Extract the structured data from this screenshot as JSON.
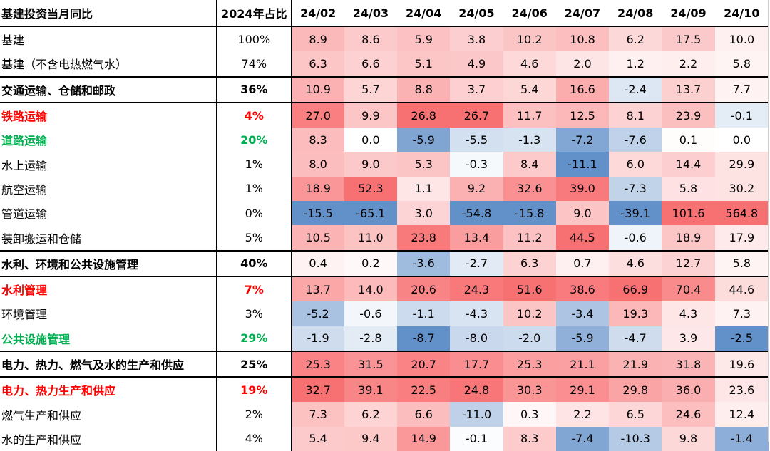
{
  "header": {
    "title": "基建投资当月同比",
    "share_label": "2024年占比",
    "months": [
      "24/02",
      "24/03",
      "24/04",
      "24/05",
      "24/06",
      "24/07",
      "24/08",
      "24/09",
      "24/10"
    ]
  },
  "rows": [
    {
      "name": "基建",
      "share": "100%",
      "style": "normal",
      "sep": false,
      "values": [
        8.9,
        8.6,
        5.9,
        3.8,
        10.2,
        10.8,
        6.2,
        17.5,
        10.0
      ]
    },
    {
      "name": "基建（不含电热燃气水）",
      "share": "74%",
      "style": "normal",
      "sep": true,
      "values": [
        6.3,
        6.6,
        5.1,
        4.9,
        4.6,
        2.0,
        1.2,
        2.2,
        5.8
      ]
    },
    {
      "name": "交通运输、仓储和邮政",
      "share": "36%",
      "style": "bold",
      "sep": true,
      "values": [
        10.9,
        5.7,
        8.8,
        3.7,
        5.4,
        16.6,
        -2.4,
        13.7,
        7.7
      ]
    },
    {
      "name": "铁路运输",
      "share": "4%",
      "style": "red",
      "sep": false,
      "values": [
        27.0,
        9.9,
        26.8,
        26.7,
        11.7,
        12.5,
        8.1,
        23.9,
        -0.1
      ]
    },
    {
      "name": "道路运输",
      "share": "20%",
      "style": "green",
      "sep": false,
      "values": [
        8.3,
        0.0,
        -5.9,
        -5.5,
        -1.3,
        -7.2,
        -7.6,
        0.1,
        0.0
      ]
    },
    {
      "name": "水上运输",
      "share": "1%",
      "style": "normal",
      "sep": false,
      "values": [
        8.0,
        9.0,
        5.3,
        -0.3,
        8.4,
        -11.1,
        6.0,
        14.4,
        29.9
      ]
    },
    {
      "name": "航空运输",
      "share": "1%",
      "style": "normal",
      "sep": false,
      "values": [
        18.9,
        52.3,
        1.1,
        9.2,
        32.6,
        39.0,
        -7.3,
        5.8,
        30.2
      ]
    },
    {
      "name": "管道运输",
      "share": "0%",
      "style": "normal",
      "sep": false,
      "values": [
        -15.5,
        -65.1,
        3.0,
        -54.8,
        -15.8,
        9.0,
        -39.1,
        101.6,
        564.8
      ]
    },
    {
      "name": "装卸搬运和仓储",
      "share": "5%",
      "style": "normal",
      "sep": true,
      "values": [
        10.5,
        11.0,
        23.8,
        13.4,
        11.2,
        44.5,
        -0.6,
        18.9,
        17.9
      ]
    },
    {
      "name": "水利、环境和公共设施管理",
      "share": "40%",
      "style": "bold",
      "sep": true,
      "values": [
        0.4,
        0.2,
        -3.6,
        -2.7,
        6.3,
        0.7,
        4.6,
        12.7,
        5.8
      ]
    },
    {
      "name": "水利管理",
      "share": "7%",
      "style": "red",
      "sep": false,
      "values": [
        13.7,
        14.0,
        20.6,
        24.3,
        51.6,
        38.6,
        66.9,
        70.4,
        44.6
      ]
    },
    {
      "name": "环境管理",
      "share": "3%",
      "style": "normal",
      "sep": false,
      "values": [
        -5.2,
        -0.6,
        -1.1,
        -4.3,
        10.2,
        -3.4,
        19.3,
        4.3,
        7.3
      ]
    },
    {
      "name": "公共设施管理",
      "share": "29%",
      "style": "green",
      "sep": true,
      "values": [
        -1.9,
        -2.8,
        -8.7,
        -8.0,
        -2.0,
        -5.9,
        -4.7,
        3.9,
        -2.5
      ]
    },
    {
      "name": "电力、热力、燃气及水的生产和供应",
      "share": "25%",
      "style": "bold",
      "sep": true,
      "values": [
        25.3,
        31.5,
        20.7,
        17.7,
        25.3,
        21.1,
        21.9,
        31.8,
        19.6
      ]
    },
    {
      "name": "电力、热力生产和供应",
      "share": "19%",
      "style": "red",
      "sep": false,
      "values": [
        32.7,
        39.1,
        22.5,
        24.8,
        30.3,
        29.1,
        29.8,
        36.0,
        23.6
      ]
    },
    {
      "name": "燃气生产和供应",
      "share": "2%",
      "style": "normal",
      "sep": false,
      "values": [
        7.3,
        6.2,
        6.6,
        -11.0,
        0.3,
        2.2,
        6.5,
        24.6,
        12.4
      ]
    },
    {
      "name": "水的生产和供应",
      "share": "4%",
      "style": "normal",
      "sep": false,
      "values": [
        5.4,
        9.4,
        14.9,
        -0.1,
        8.3,
        -7.4,
        -10.3,
        9.8,
        -1.4
      ]
    }
  ],
  "colors": {
    "positive_max": "#f8696b",
    "negative_max": "#5a8ac6",
    "neutral": "#ffffff",
    "red_text": "#ff0000",
    "green_text": "#00b050"
  }
}
